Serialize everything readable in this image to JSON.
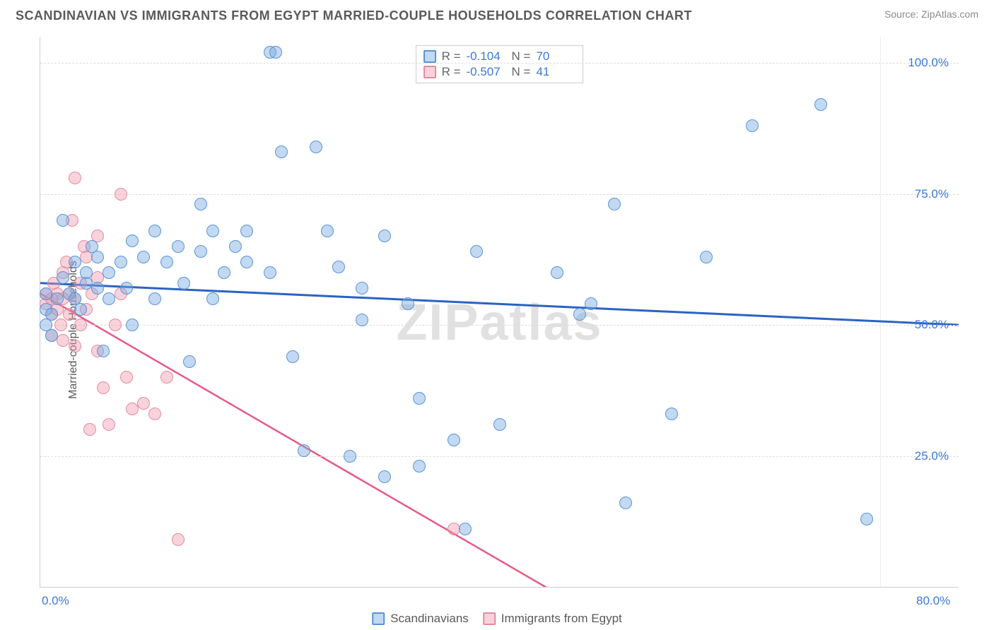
{
  "header": {
    "title": "SCANDINAVIAN VS IMMIGRANTS FROM EGYPT MARRIED-COUPLE HOUSEHOLDS CORRELATION CHART",
    "source": "Source: ZipAtlas.com"
  },
  "ylabel": "Married-couple Households",
  "watermark": "ZIPatlas",
  "chart": {
    "type": "scatter-with-regression",
    "background": "#ffffff",
    "grid_color": "#dddddd",
    "axis_color": "#cccccc",
    "tick_color": "#3b78d8",
    "xlim": [
      0,
      80
    ],
    "ylim": [
      0,
      105
    ],
    "yticks": [
      25.0,
      50.0,
      75.0,
      100.0
    ],
    "ytick_labels": [
      "25.0%",
      "50.0%",
      "75.0%",
      "100.0%"
    ],
    "xticks": [
      0,
      80
    ],
    "xtick_labels": [
      "0.0%",
      "80.0%"
    ],
    "marker_radius": 9,
    "marker_border_width": 1.5,
    "series": [
      {
        "id": "scandinavians",
        "label": "Scandinavians",
        "fill": "rgba(120,170,225,0.45)",
        "stroke": "#5a94d6",
        "trend_color": "#2a63c4",
        "trend_width": 3,
        "R": "-0.104",
        "N": "70",
        "trend": {
          "x1": 0,
          "y1": 58,
          "x2": 80,
          "y2": 50
        },
        "points": [
          [
            0.5,
            50
          ],
          [
            0.5,
            53
          ],
          [
            0.5,
            56
          ],
          [
            1,
            48
          ],
          [
            1,
            52
          ],
          [
            1.5,
            55
          ],
          [
            2,
            59
          ],
          [
            2,
            70
          ],
          [
            2.5,
            56
          ],
          [
            3,
            55
          ],
          [
            3,
            62
          ],
          [
            3.5,
            53
          ],
          [
            4,
            58
          ],
          [
            4,
            60
          ],
          [
            4.5,
            65
          ],
          [
            5,
            57
          ],
          [
            5,
            63
          ],
          [
            5.5,
            45
          ],
          [
            6,
            55
          ],
          [
            6,
            60
          ],
          [
            7,
            62
          ],
          [
            7.5,
            57
          ],
          [
            8,
            50
          ],
          [
            8,
            66
          ],
          [
            9,
            63
          ],
          [
            10,
            55
          ],
          [
            10,
            68
          ],
          [
            11,
            62
          ],
          [
            12,
            65
          ],
          [
            12.5,
            58
          ],
          [
            13,
            43
          ],
          [
            14,
            64
          ],
          [
            14,
            73
          ],
          [
            15,
            55
          ],
          [
            15,
            68
          ],
          [
            16,
            60
          ],
          [
            17,
            65
          ],
          [
            18,
            62
          ],
          [
            18,
            68
          ],
          [
            20,
            60
          ],
          [
            20,
            102
          ],
          [
            20.5,
            102
          ],
          [
            21,
            83
          ],
          [
            22,
            44
          ],
          [
            23,
            26
          ],
          [
            24,
            84
          ],
          [
            25,
            68
          ],
          [
            26,
            61
          ],
          [
            27,
            25
          ],
          [
            28,
            57
          ],
          [
            28,
            51
          ],
          [
            30,
            21
          ],
          [
            30,
            67
          ],
          [
            32,
            54
          ],
          [
            33,
            36
          ],
          [
            33,
            23
          ],
          [
            36,
            28
          ],
          [
            37,
            11
          ],
          [
            38,
            64
          ],
          [
            40,
            31
          ],
          [
            45,
            60
          ],
          [
            48,
            54
          ],
          [
            50,
            73
          ],
          [
            51,
            16
          ],
          [
            55,
            33
          ],
          [
            58,
            63
          ],
          [
            62,
            88
          ],
          [
            68,
            92
          ],
          [
            72,
            13
          ],
          [
            47,
            52
          ]
        ]
      },
      {
        "id": "immigrants-egypt",
        "label": "Immigrants from Egypt",
        "fill": "rgba(240,150,170,0.42)",
        "stroke": "#e38ba0",
        "trend_color": "#e75a86",
        "trend_width": 2.5,
        "R": "-0.507",
        "N": "41",
        "trend": {
          "x1": 0,
          "y1": 56,
          "x2": 44,
          "y2": 0
        },
        "trend_dashed_ext": {
          "x1": 44,
          "y1": 0,
          "x2": 48,
          "y2": -5
        },
        "points": [
          [
            0.5,
            54
          ],
          [
            0.5,
            56
          ],
          [
            1,
            48
          ],
          [
            1,
            52
          ],
          [
            1,
            55
          ],
          [
            1.2,
            58
          ],
          [
            1.5,
            53
          ],
          [
            1.5,
            56
          ],
          [
            1.8,
            50
          ],
          [
            2,
            47
          ],
          [
            2,
            55
          ],
          [
            2,
            60
          ],
          [
            2.3,
            62
          ],
          [
            2.5,
            52
          ],
          [
            2.5,
            56
          ],
          [
            2.8,
            70
          ],
          [
            3,
            46
          ],
          [
            3,
            55
          ],
          [
            3,
            78
          ],
          [
            3.5,
            50
          ],
          [
            3.5,
            58
          ],
          [
            3.8,
            65
          ],
          [
            4,
            53
          ],
          [
            4,
            63
          ],
          [
            4.3,
            30
          ],
          [
            4.5,
            56
          ],
          [
            5,
            45
          ],
          [
            5,
            67
          ],
          [
            5.5,
            38
          ],
          [
            6,
            31
          ],
          [
            6.5,
            50
          ],
          [
            7,
            75
          ],
          [
            7,
            56
          ],
          [
            7.5,
            40
          ],
          [
            8,
            34
          ],
          [
            9,
            35
          ],
          [
            10,
            33
          ],
          [
            11,
            40
          ],
          [
            12,
            9
          ],
          [
            36,
            11
          ],
          [
            5,
            59
          ]
        ]
      }
    ]
  },
  "legend_top": {
    "r_label": "R =",
    "n_label": "N ="
  },
  "legend_bottom": {
    "items": [
      {
        "label": "Scandinavians",
        "fill": "rgba(120,170,225,0.45)",
        "stroke": "#5a94d6"
      },
      {
        "label": "Immigrants from Egypt",
        "fill": "rgba(240,150,170,0.42)",
        "stroke": "#e38ba0"
      }
    ]
  }
}
